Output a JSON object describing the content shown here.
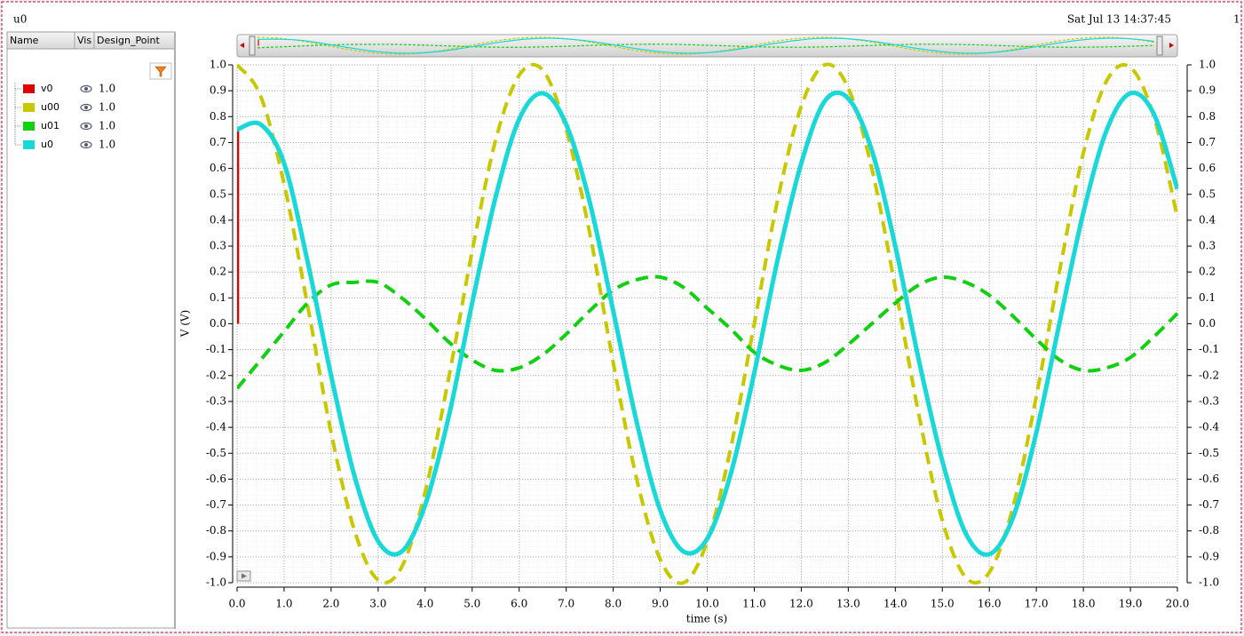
{
  "header": {
    "title": "u0",
    "timestamp": "Sat Jul 13 14:37:45",
    "corner_label": "1"
  },
  "panel": {
    "headers": [
      "Name",
      "Vis",
      "Design_Point"
    ]
  },
  "chart_data": {
    "type": "line",
    "x_label": "time (s)",
    "y_label": "V (V)",
    "x": [
      0,
      0.5,
      1,
      1.5,
      2,
      2.5,
      3,
      3.5,
      4,
      4.5,
      5,
      5.5,
      6,
      6.5,
      7,
      7.5,
      8,
      8.5,
      9,
      9.5,
      10,
      10.5,
      11,
      11.5,
      12,
      12.5,
      13,
      13.5,
      14,
      14.5,
      15,
      15.5,
      16,
      16.5,
      17,
      17.5,
      18,
      18.5,
      19,
      19.5,
      20
    ],
    "series": [
      {
        "name": "v0",
        "design_point": "1.0",
        "color": "#e00000",
        "dash": false,
        "x": [
          0.02,
          0.02
        ],
        "values": [
          0.75,
          0.0
        ]
      },
      {
        "name": "u00",
        "design_point": "1.0",
        "color": "#c8c800",
        "dash": true,
        "values": [
          1.0,
          0.88,
          0.54,
          0.07,
          -0.42,
          -0.8,
          -0.99,
          -0.94,
          -0.65,
          -0.21,
          0.28,
          0.71,
          0.96,
          0.98,
          0.75,
          0.35,
          -0.15,
          -0.6,
          -0.91,
          -1.0,
          -0.84,
          -0.48,
          0.0,
          0.48,
          0.84,
          1.0,
          0.91,
          0.6,
          0.14,
          -0.35,
          -0.76,
          -0.98,
          -0.96,
          -0.71,
          -0.28,
          0.21,
          0.66,
          0.94,
          0.99,
          0.8,
          0.41
        ]
      },
      {
        "name": "u01",
        "design_point": "1.0",
        "color": "#10d010",
        "dash": true,
        "values": [
          -0.25,
          -0.14,
          -0.03,
          0.08,
          0.15,
          0.16,
          0.16,
          0.1,
          0.02,
          -0.07,
          -0.14,
          -0.18,
          -0.17,
          -0.12,
          -0.04,
          0.05,
          0.13,
          0.17,
          0.18,
          0.14,
          0.06,
          -0.02,
          -0.11,
          -0.16,
          -0.18,
          -0.15,
          -0.08,
          0.0,
          0.08,
          0.15,
          0.18,
          0.16,
          0.11,
          0.03,
          -0.06,
          -0.14,
          -0.18,
          -0.17,
          -0.13,
          -0.05,
          0.04
        ]
      },
      {
        "name": "u0",
        "design_point": "1.0",
        "color": "#18d8d8",
        "dash": false,
        "values": [
          0.75,
          0.77,
          0.62,
          0.24,
          -0.2,
          -0.59,
          -0.84,
          -0.88,
          -0.7,
          -0.36,
          0.08,
          0.49,
          0.79,
          0.89,
          0.77,
          0.47,
          0.05,
          -0.38,
          -0.72,
          -0.88,
          -0.83,
          -0.58,
          -0.19,
          0.25,
          0.62,
          0.86,
          0.87,
          0.67,
          0.3,
          -0.14,
          -0.53,
          -0.81,
          -0.89,
          -0.75,
          -0.42,
          0.01,
          0.43,
          0.75,
          0.89,
          0.81,
          0.52
        ]
      }
    ],
    "xlim": [
      0,
      20
    ],
    "ylim": [
      -1,
      1
    ],
    "xticks": [
      {
        "value": 0,
        "label": "0.0"
      },
      {
        "value": 1,
        "label": "1.0"
      },
      {
        "value": 2,
        "label": "2.0"
      },
      {
        "value": 3,
        "label": "3.0"
      },
      {
        "value": 4,
        "label": "4.0"
      },
      {
        "value": 5,
        "label": "5.0"
      },
      {
        "value": 6,
        "label": "6.0"
      },
      {
        "value": 7,
        "label": "7.0"
      },
      {
        "value": 8,
        "label": "8.0"
      },
      {
        "value": 9,
        "label": "9.0"
      },
      {
        "value": 10,
        "label": "10.0"
      },
      {
        "value": 11,
        "label": "11.0"
      },
      {
        "value": 12,
        "label": "12.0"
      },
      {
        "value": 13,
        "label": "13.0"
      },
      {
        "value": 14,
        "label": "14.0"
      },
      {
        "value": 15,
        "label": "15.0"
      },
      {
        "value": 16,
        "label": "16.0"
      },
      {
        "value": 17,
        "label": "17.0"
      },
      {
        "value": 18,
        "label": "18.0"
      },
      {
        "value": 19,
        "label": "19.0"
      },
      {
        "value": 20,
        "label": "20.0"
      }
    ],
    "yticks": [
      {
        "value": 1,
        "label": "1.0"
      },
      0.9,
      0.8,
      0.7,
      0.6,
      0.5,
      0.4,
      0.3,
      0.2,
      0.1,
      {
        "value": 0,
        "label": "0.0"
      },
      -0.1,
      -0.2,
      -0.3,
      -0.4,
      -0.5,
      -0.6,
      -0.7,
      -0.8,
      -0.9,
      {
        "value": -1,
        "label": "-1.0"
      }
    ],
    "grid": true,
    "right_axis_mirror": true
  }
}
